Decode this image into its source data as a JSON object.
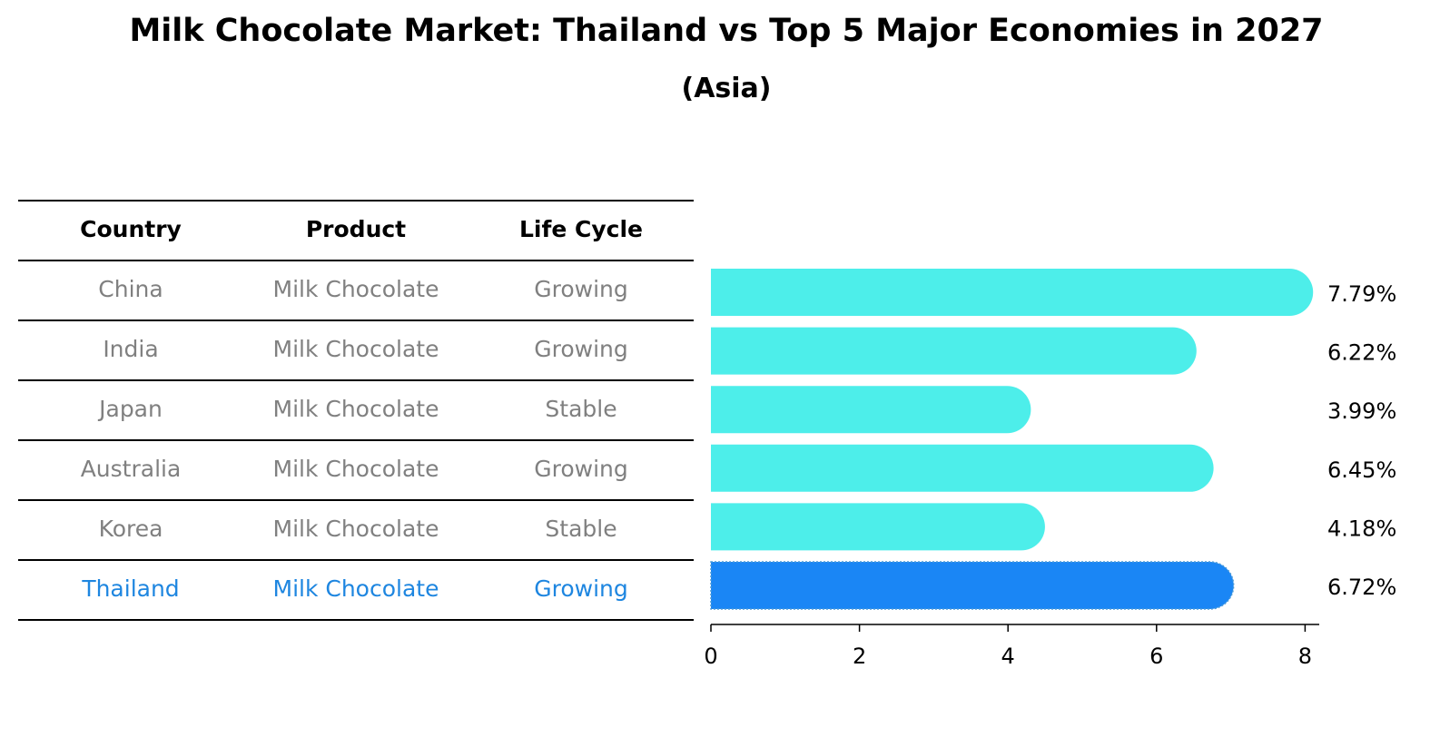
{
  "title": "Milk Chocolate Market: Thailand vs Top 5 Major Economies in 2027",
  "subtitle": "(Asia)",
  "table": {
    "headers": [
      "Country",
      "Product",
      "Life Cycle"
    ],
    "rows": [
      [
        "China",
        "Milk Chocolate",
        "Growing"
      ],
      [
        "India",
        "Milk Chocolate",
        "Growing"
      ],
      [
        "Japan",
        "Milk Chocolate",
        "Stable"
      ],
      [
        "Australia",
        "Milk Chocolate",
        "Growing"
      ],
      [
        "Korea",
        "Milk Chocolate",
        "Stable"
      ],
      [
        "Thailand",
        "Milk Chocolate",
        "Growing"
      ]
    ],
    "highlight_row": 5
  },
  "chart_data": {
    "type": "bar",
    "orientation": "horizontal",
    "categories": [
      "China",
      "India",
      "Japan",
      "Australia",
      "Korea",
      "Thailand"
    ],
    "values": [
      7.79,
      6.22,
      3.99,
      6.45,
      4.18,
      6.72
    ],
    "value_labels": [
      "7.79%",
      "6.22%",
      "3.99%",
      "6.45%",
      "4.18%",
      "6.72%"
    ],
    "xlim": [
      0,
      8.2
    ],
    "xticks": [
      0,
      2,
      4,
      6,
      8
    ],
    "highlight_index": 5,
    "colors": {
      "bar": "#4deeea",
      "highlight": "#1a86f5"
    },
    "grid": false
  }
}
